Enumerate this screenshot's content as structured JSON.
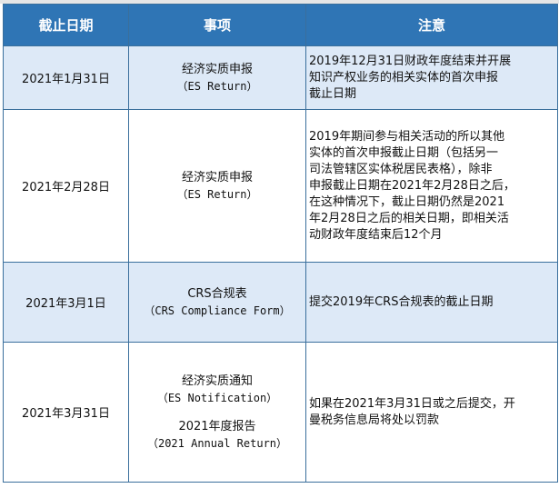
{
  "colors": {
    "header_bg": "#2f75b5",
    "alt_row_bg": "#dde9f7",
    "border": "#3a6f9c"
  },
  "headers": [
    "截止日期",
    "事项",
    "注意"
  ],
  "rows": [
    {
      "date": "2021年1月31日",
      "items": [
        {
          "cn": "经济实质申报",
          "en": "（ES Return）"
        }
      ],
      "note_lines": [
        "2019年12月31日财政年度结束并开展",
        "知识产权业务的相关实体的首次申报",
        "截止日期"
      ]
    },
    {
      "date": "2021年2月28日",
      "items": [
        {
          "cn": "经济实质申报",
          "en": "（ES Return）"
        }
      ],
      "note_lines": [
        "2019年期间参与相关活动的所以其他",
        "实体的首次申报截止日期（包括另一",
        "司法管辖区实体税居民表格），除非",
        "申报截止日期在2021年2月28日之后，",
        "在这种情况下，截止日期仍然是2021",
        "年2月28日之后的相关日期，即相关活",
        "动财政年度结束后12个月"
      ]
    },
    {
      "date": "2021年3月1日",
      "items": [
        {
          "cn": "CRS合规表",
          "en": "（CRS Compliance Form）"
        }
      ],
      "note_lines": [
        "提交2019年CRS合规表的截止日期"
      ]
    },
    {
      "date": "2021年3月31日",
      "items": [
        {
          "cn": "经济实质通知",
          "en": "（ES Notification）"
        },
        {
          "cn": "2021年度报告",
          "en": "（2021 Annual Return）"
        }
      ],
      "note_lines": [
        "如果在2021年3月31日或之后提交，开",
        "曼税务信息局将处以罚款"
      ]
    }
  ]
}
